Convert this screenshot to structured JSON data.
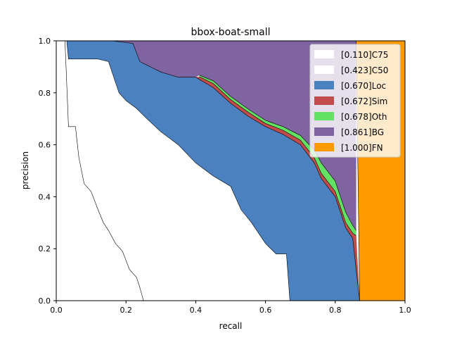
{
  "chart_data": {
    "type": "area",
    "title": "bbox-boat-small",
    "xlabel": "recall",
    "ylabel": "precision",
    "xlim": [
      0,
      1
    ],
    "ylim": [
      0,
      1
    ],
    "xticks": [
      "0.0",
      "0.2",
      "0.4",
      "0.6",
      "0.8",
      "1.0"
    ],
    "yticks": [
      "0.0",
      "0.2",
      "0.4",
      "0.6",
      "0.8",
      "1.0"
    ],
    "grid": false,
    "legend": "top-right",
    "series": [
      {
        "name": "[0.110]C75",
        "color": "#ffffff",
        "points": [
          [
            0.025,
            1.0
          ],
          [
            0.035,
            0.67
          ],
          [
            0.055,
            0.67
          ],
          [
            0.065,
            0.55
          ],
          [
            0.08,
            0.45
          ],
          [
            0.1,
            0.42
          ],
          [
            0.12,
            0.35
          ],
          [
            0.135,
            0.3
          ],
          [
            0.15,
            0.27
          ],
          [
            0.17,
            0.22
          ],
          [
            0.19,
            0.19
          ],
          [
            0.21,
            0.12
          ],
          [
            0.23,
            0.09
          ],
          [
            0.24,
            0.05
          ],
          [
            0.25,
            0.0
          ]
        ]
      },
      {
        "name": "[0.423]C50",
        "color": "#ffffff",
        "points": [
          [
            0.03,
            1.0
          ],
          [
            0.035,
            0.93
          ],
          [
            0.12,
            0.93
          ],
          [
            0.15,
            0.92
          ],
          [
            0.165,
            0.86
          ],
          [
            0.18,
            0.8
          ],
          [
            0.2,
            0.77
          ],
          [
            0.23,
            0.74
          ],
          [
            0.26,
            0.7
          ],
          [
            0.3,
            0.65
          ],
          [
            0.35,
            0.6
          ],
          [
            0.4,
            0.53
          ],
          [
            0.45,
            0.48
          ],
          [
            0.5,
            0.44
          ],
          [
            0.53,
            0.35
          ],
          [
            0.56,
            0.3
          ],
          [
            0.6,
            0.22
          ],
          [
            0.63,
            0.18
          ],
          [
            0.66,
            0.18
          ],
          [
            0.67,
            0.0
          ]
        ]
      },
      {
        "name": "[0.670]Loc",
        "color": "#4c81bf",
        "points": [
          [
            0.16,
            1.0
          ],
          [
            0.22,
            0.99
          ],
          [
            0.24,
            0.92
          ],
          [
            0.3,
            0.88
          ],
          [
            0.35,
            0.86
          ],
          [
            0.4,
            0.86
          ],
          [
            0.45,
            0.82
          ],
          [
            0.5,
            0.76
          ],
          [
            0.55,
            0.71
          ],
          [
            0.6,
            0.67
          ],
          [
            0.65,
            0.64
          ],
          [
            0.7,
            0.6
          ],
          [
            0.74,
            0.53
          ],
          [
            0.76,
            0.47
          ],
          [
            0.8,
            0.4
          ],
          [
            0.83,
            0.28
          ],
          [
            0.85,
            0.24
          ],
          [
            0.87,
            0.0
          ]
        ]
      },
      {
        "name": "[0.672]Sim",
        "color": "#c04c4c",
        "points": [
          [
            0.41,
            0.862
          ],
          [
            0.45,
            0.836
          ],
          [
            0.5,
            0.774
          ],
          [
            0.55,
            0.726
          ],
          [
            0.6,
            0.682
          ],
          [
            0.65,
            0.656
          ],
          [
            0.7,
            0.618
          ],
          [
            0.74,
            0.55
          ],
          [
            0.76,
            0.49
          ],
          [
            0.8,
            0.42
          ],
          [
            0.83,
            0.3
          ],
          [
            0.85,
            0.26
          ],
          [
            0.86,
            0.25
          ]
        ]
      },
      {
        "name": "[0.678]Oth",
        "color": "#62e162",
        "points": [
          [
            0.41,
            0.868
          ],
          [
            0.45,
            0.846
          ],
          [
            0.5,
            0.786
          ],
          [
            0.55,
            0.738
          ],
          [
            0.6,
            0.694
          ],
          [
            0.65,
            0.67
          ],
          [
            0.7,
            0.636
          ],
          [
            0.74,
            0.58
          ],
          [
            0.76,
            0.53
          ],
          [
            0.8,
            0.46
          ],
          [
            0.83,
            0.34
          ],
          [
            0.85,
            0.29
          ],
          [
            0.86,
            0.27
          ]
        ]
      },
      {
        "name": "[0.861]BG",
        "color": "#8064a2",
        "points": [
          [
            0.16,
            1.0
          ],
          [
            0.86,
            1.0
          ],
          [
            0.87,
            0.0
          ]
        ]
      },
      {
        "name": "[1.000]FN",
        "color": "#ff9a00",
        "points": [
          [
            0.86,
            1.0
          ],
          [
            1.0,
            1.0
          ],
          [
            1.0,
            0.0
          ],
          [
            0.87,
            0.0
          ]
        ]
      }
    ]
  }
}
